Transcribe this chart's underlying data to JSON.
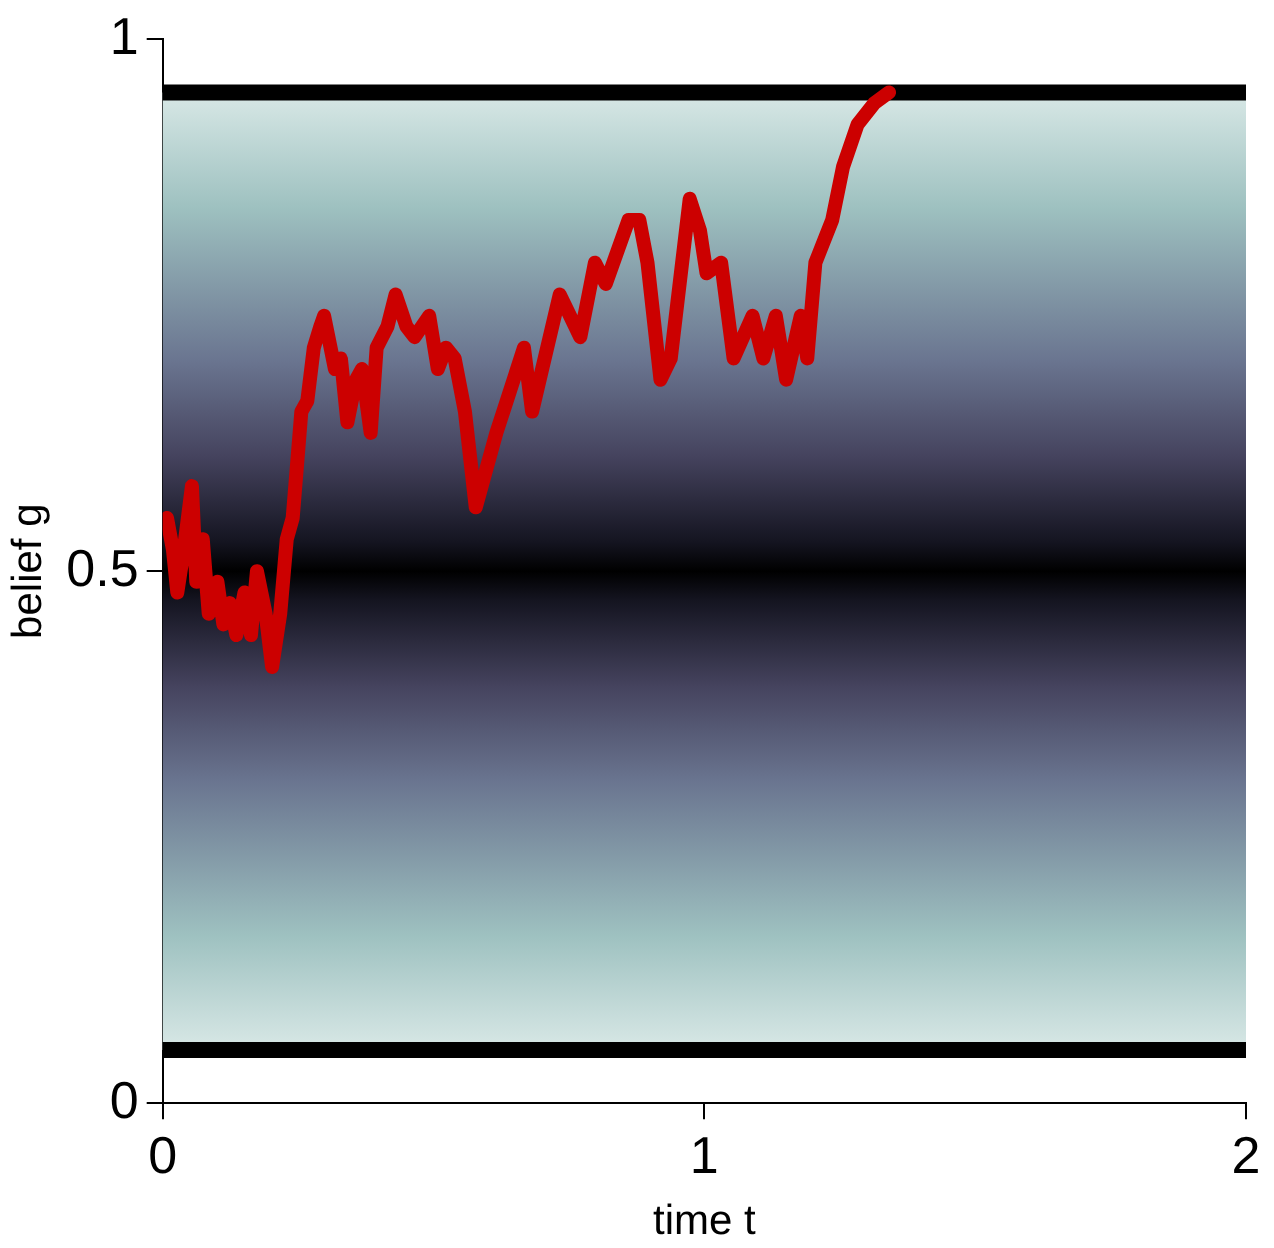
{
  "chart_data": {
    "type": "line",
    "xlabel": "time t",
    "ylabel": "belief g",
    "xlim": [
      0,
      2
    ],
    "ylim": [
      0,
      1
    ],
    "xticks": [
      0,
      1,
      2
    ],
    "yticks": [
      0,
      0.5,
      1
    ],
    "grid": false,
    "legend": false,
    "marker": "none",
    "line_style": "solid",
    "bands": [
      {
        "axis": "y",
        "from": 0.05,
        "to": 0.95,
        "color": "#000000"
      }
    ],
    "ref_lines": [
      {
        "axis": "y",
        "value": 0.95,
        "color": "#000000"
      },
      {
        "axis": "y",
        "value": 0.05,
        "color": "#000000"
      }
    ],
    "series": [
      {
        "color": "#cc0000",
        "x": [
          0.008,
          0.019,
          0.027,
          0.039,
          0.054,
          0.062,
          0.074,
          0.085,
          0.101,
          0.112,
          0.124,
          0.136,
          0.151,
          0.163,
          0.174,
          0.19,
          0.202,
          0.217,
          0.229,
          0.24,
          0.256,
          0.267,
          0.279,
          0.291,
          0.298,
          0.318,
          0.329,
          0.341,
          0.357,
          0.368,
          0.384,
          0.395,
          0.415,
          0.43,
          0.45,
          0.465,
          0.492,
          0.508,
          0.523,
          0.539,
          0.558,
          0.578,
          0.616,
          0.667,
          0.682,
          0.733,
          0.771,
          0.798,
          0.818,
          0.86,
          0.88,
          0.895,
          0.919,
          0.938,
          0.973,
          0.992,
          1.004,
          1.031,
          1.054,
          1.089,
          1.109,
          1.132,
          1.151,
          1.178,
          1.19,
          1.205,
          1.236,
          1.256,
          1.283,
          1.314,
          1.341
        ],
        "values": [
          0.55,
          0.52,
          0.48,
          0.52,
          0.58,
          0.49,
          0.53,
          0.46,
          0.49,
          0.45,
          0.47,
          0.44,
          0.48,
          0.44,
          0.5,
          0.46,
          0.41,
          0.46,
          0.53,
          0.55,
          0.65,
          0.66,
          0.71,
          0.73,
          0.74,
          0.69,
          0.7,
          0.64,
          0.68,
          0.69,
          0.63,
          0.71,
          0.73,
          0.76,
          0.73,
          0.72,
          0.74,
          0.69,
          0.71,
          0.7,
          0.65,
          0.56,
          0.63,
          0.71,
          0.65,
          0.76,
          0.72,
          0.79,
          0.77,
          0.83,
          0.83,
          0.79,
          0.68,
          0.7,
          0.85,
          0.82,
          0.78,
          0.79,
          0.7,
          0.74,
          0.7,
          0.74,
          0.68,
          0.74,
          0.7,
          0.79,
          0.83,
          0.88,
          0.92,
          0.94,
          0.95
        ]
      }
    ]
  }
}
